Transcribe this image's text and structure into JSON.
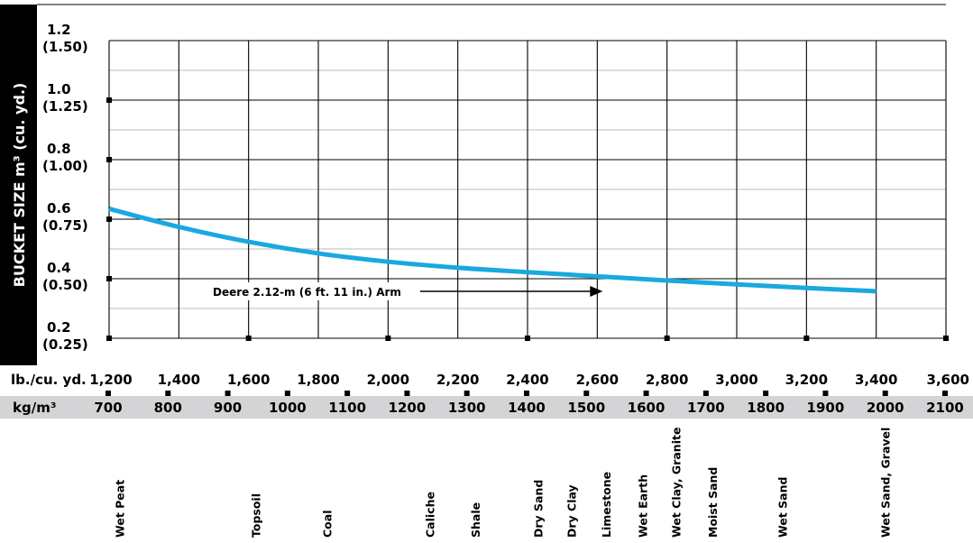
{
  "chart_data": {
    "type": "line",
    "ylabel": "BUCKET SIZE m³ (cu. yd.)",
    "y_ticks": [
      {
        "value": 0.2,
        "label": "0.2",
        "sub": "(0.25)"
      },
      {
        "value": 0.4,
        "label": "0.4",
        "sub": "(0.50)"
      },
      {
        "value": 0.6,
        "label": "0.6",
        "sub": "(0.75)"
      },
      {
        "value": 0.8,
        "label": "0.8",
        "sub": "(1.00)"
      },
      {
        "value": 1.0,
        "label": "1.0",
        "sub": "(1.25)"
      },
      {
        "value": 1.2,
        "label": "1.2",
        "sub": "(1.50)"
      }
    ],
    "ylim": [
      0.2,
      1.2
    ],
    "x_unit_label": "lb./cu. yd.",
    "x_ticks": [
      "1,200",
      "1,400",
      "1,600",
      "1,800",
      "2,000",
      "2,200",
      "2,400",
      "2,600",
      "2,800",
      "3,000",
      "3,200",
      "3,400",
      "3,600"
    ],
    "x_values": [
      1200,
      1400,
      1600,
      1800,
      2000,
      2200,
      2400,
      2600,
      2800,
      3000,
      3200,
      3400,
      3600
    ],
    "xlim": [
      1200,
      3600
    ],
    "kg_unit_label": "kg/m³",
    "kg_ticks": [
      "700",
      "800",
      "900",
      "1000",
      "1100",
      "1200",
      "1300",
      "1400",
      "1500",
      "1600",
      "1700",
      "1800",
      "1900",
      "2000",
      "2100"
    ],
    "materials": [
      {
        "name": "Wet Peat",
        "x": 1230
      },
      {
        "name": "Topsoil",
        "x": 1620
      },
      {
        "name": "Coal",
        "x": 1825
      },
      {
        "name": "Caliche",
        "x": 2120
      },
      {
        "name": "Shale",
        "x": 2250
      },
      {
        "name": "Dry Sand",
        "x": 2430
      },
      {
        "name": "Dry Clay",
        "x": 2525
      },
      {
        "name": "Limestone",
        "x": 2625
      },
      {
        "name": "Wet Earth",
        "x": 2730
      },
      {
        "name": "Wet Clay, Granite",
        "x": 2825
      },
      {
        "name": "Moist Sand",
        "x": 2930
      },
      {
        "name": "Wet Sand",
        "x": 3130
      },
      {
        "name": "Wet Sand, Gravel",
        "x": 3425
      }
    ],
    "series": [
      {
        "name": "Deere 2.12-m (6 ft. 11 in.) Arm",
        "color": "#1aa8e0",
        "x": [
          1200,
          1400,
          1600,
          1800,
          2000,
          2200,
          2400,
          2600,
          2800,
          3000,
          3200,
          3400
        ],
        "y": [
          0.635,
          0.574,
          0.524,
          0.485,
          0.457,
          0.437,
          0.422,
          0.408,
          0.394,
          0.381,
          0.369,
          0.358
        ]
      }
    ],
    "annotation": {
      "text": "Deere 2.12-m (6 ft. 11 in.) Arm",
      "points_to_x": 2600
    }
  }
}
